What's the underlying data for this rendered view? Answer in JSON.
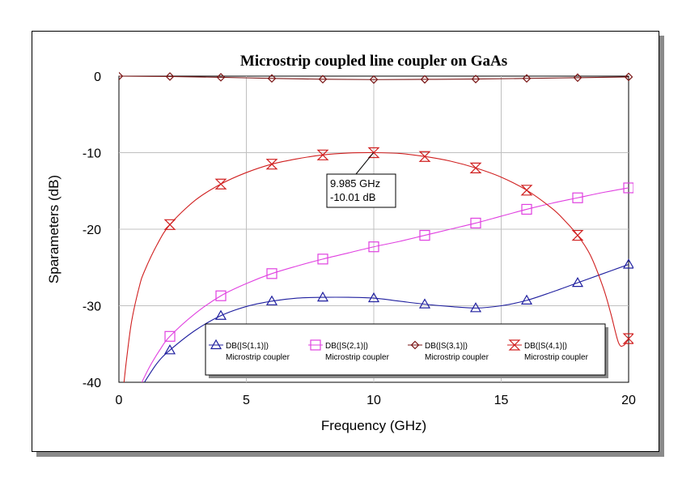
{
  "chart_data": {
    "type": "line",
    "title": "Microstrip coupled line coupler on GaAs",
    "xlabel": "Frequency (GHz)",
    "ylabel": "Sparameters (dB)",
    "xlim": [
      0,
      20
    ],
    "ylim": [
      -40,
      0
    ],
    "xticks": [
      "0",
      "5",
      "10",
      "15",
      "20"
    ],
    "yticks": [
      "0",
      "-10",
      "-20",
      "-30",
      "-40"
    ],
    "xtick_values": [
      0,
      5,
      10,
      15,
      20
    ],
    "ytick_values": [
      0,
      -10,
      -20,
      -30,
      -40
    ],
    "grid": true,
    "legend_position": "bottom-right",
    "series": [
      {
        "name": "DB(|S(1,1)|)",
        "subtitle": "Microstrip coupler",
        "color": "#1f1f9f",
        "marker": "triangle-up",
        "x": [
          1,
          1.5,
          2,
          3,
          4,
          5,
          6,
          7,
          8,
          9,
          10,
          11,
          12,
          13,
          14,
          15,
          16,
          17,
          18,
          19,
          20
        ],
        "y": [
          -40,
          -37.5,
          -35.8,
          -33.2,
          -31.3,
          -30.1,
          -29.4,
          -29.0,
          -28.9,
          -28.9,
          -29.0,
          -29.4,
          -29.8,
          -30.1,
          -30.3,
          -30.0,
          -29.3,
          -28.2,
          -27.0,
          -25.8,
          -24.6
        ],
        "markers_x": [
          2,
          4,
          6,
          8,
          10,
          12,
          14,
          16,
          18,
          20
        ]
      },
      {
        "name": "DB(|S(2,1)|)",
        "subtitle": "Microstrip coupler",
        "color": "#e040e0",
        "marker": "square",
        "x": [
          0.9,
          1.2,
          1.6,
          2,
          3,
          4,
          5,
          6,
          7,
          8,
          9,
          10,
          11,
          12,
          13,
          14,
          15,
          16,
          17,
          18,
          19,
          20
        ],
        "y": [
          -40,
          -38,
          -35.8,
          -34.0,
          -31.0,
          -28.7,
          -27.1,
          -25.8,
          -24.8,
          -23.9,
          -23.1,
          -22.3,
          -21.6,
          -20.8,
          -20.0,
          -19.2,
          -18.3,
          -17.4,
          -16.6,
          -15.9,
          -15.2,
          -14.6
        ],
        "markers_x": [
          2,
          4,
          6,
          8,
          10,
          12,
          14,
          16,
          18,
          20
        ]
      },
      {
        "name": "DB(|S(3,1)|)",
        "subtitle": "Microstrip coupler",
        "color": "#7a1515",
        "marker": "diamond",
        "x": [
          0,
          2,
          4,
          6,
          8,
          10,
          12,
          14,
          16,
          18,
          20
        ],
        "y": [
          0.0,
          -0.05,
          -0.15,
          -0.3,
          -0.4,
          -0.45,
          -0.42,
          -0.38,
          -0.3,
          -0.2,
          -0.1
        ],
        "markers_x": [
          0,
          2,
          4,
          6,
          8,
          10,
          12,
          14,
          16,
          18,
          20
        ]
      },
      {
        "name": "DB(|S(4,1)|)",
        "subtitle": "Microstrip coupler",
        "color": "#d02020",
        "marker": "hourglass",
        "x": [
          0.2,
          0.3,
          0.5,
          0.8,
          1,
          1.5,
          2,
          3,
          4,
          5,
          6,
          7,
          8,
          9,
          10,
          11,
          12,
          13,
          14,
          15,
          16,
          17,
          17.5,
          18,
          18.5,
          19,
          19.3,
          19.6,
          19.8,
          20
        ],
        "y": [
          -40,
          -37,
          -32,
          -27.5,
          -25.5,
          -22.0,
          -19.4,
          -16.2,
          -14.1,
          -12.6,
          -11.5,
          -10.8,
          -10.3,
          -10.05,
          -10.0,
          -10.1,
          -10.5,
          -11.1,
          -12.0,
          -13.2,
          -14.9,
          -17.3,
          -18.9,
          -20.8,
          -23.4,
          -27.6,
          -31.0,
          -34.8,
          -35.2,
          -34.3
        ],
        "markers_x": [
          2,
          4,
          6,
          8,
          10,
          12,
          14,
          16,
          18,
          20
        ]
      }
    ],
    "annotation": {
      "line1": "9.985 GHz",
      "line2": "-10.01 dB",
      "x": 9.985,
      "y": -10.01
    }
  }
}
